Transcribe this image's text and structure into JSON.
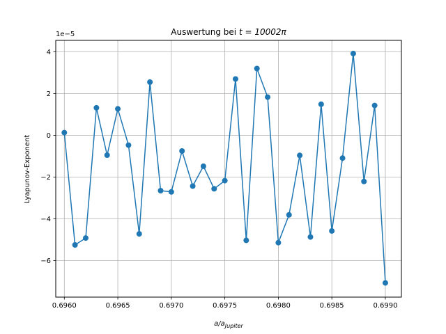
{
  "chart_data": {
    "type": "line",
    "title_prefix": "Auswertung bei ",
    "title_math": "t = 10002π",
    "xlabel_main": "a/a",
    "xlabel_sub": "Jupiter",
    "ylabel": "Lyapunov-Exponent",
    "y_offset_text": "1e−5",
    "xlim": [
      0.69592,
      0.69915
    ],
    "ylim": [
      -7.75,
      4.55
    ],
    "x_ticks": [
      "0.6960",
      "0.6965",
      "0.6970",
      "0.6975",
      "0.6980",
      "0.6985",
      "0.6990"
    ],
    "y_ticks": [
      "−6",
      "−4",
      "−2",
      "0",
      "2",
      "4"
    ],
    "y_tick_values": [
      -6,
      -4,
      -2,
      0,
      2,
      4
    ],
    "x_tick_values": [
      0.696,
      0.6965,
      0.697,
      0.6975,
      0.698,
      0.6985,
      0.699
    ],
    "grid": true,
    "color": "#1f77b4",
    "series": [
      {
        "x": [
          0.696,
          0.6961,
          0.6962,
          0.6963,
          0.6964,
          0.6965,
          0.6966,
          0.6967,
          0.6968,
          0.6969,
          0.697,
          0.6971,
          0.6972,
          0.6973,
          0.6974,
          0.6975,
          0.6976,
          0.6977,
          0.6978,
          0.6979,
          0.698,
          0.6981,
          0.6982,
          0.6983,
          0.6984,
          0.6985,
          0.6986,
          0.6987,
          0.6988,
          0.6989,
          0.699
        ],
        "y": [
          0.13,
          -5.25,
          -4.92,
          1.32,
          -0.95,
          1.27,
          -0.47,
          -4.72,
          2.55,
          -2.65,
          -2.71,
          -0.75,
          -2.43,
          -1.48,
          -2.56,
          -2.17,
          2.7,
          -5.03,
          3.2,
          1.83,
          -5.14,
          -3.81,
          -0.96,
          -4.87,
          1.49,
          -4.58,
          -1.09,
          3.92,
          -2.21,
          1.43,
          -7.07
        ]
      }
    ]
  }
}
